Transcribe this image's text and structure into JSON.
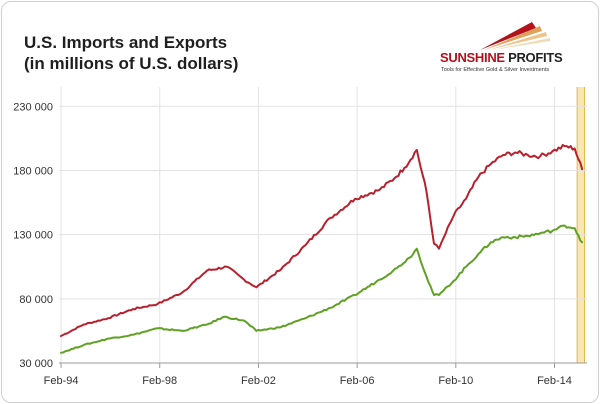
{
  "header": {
    "title_line1": "U.S. Imports and Exports",
    "title_line2": "(in millions of U.S. dollars)"
  },
  "logo": {
    "name_part1": "SUNSHINE",
    "name_part2": "PROFITS",
    "tagline": "Tools for Effective Gold & Silver Investments"
  },
  "chart_data": {
    "type": "line",
    "title": "U.S. Imports and Exports (in millions of U.S. dollars)",
    "xlabel": "",
    "ylabel": "",
    "xlim": [
      1994.0,
      2015.4
    ],
    "ylim": [
      30000,
      245000
    ],
    "y_ticks": [
      30000,
      80000,
      130000,
      180000,
      230000
    ],
    "y_tick_labels": [
      "30 000",
      "80 000",
      "130 000",
      "180 000",
      "230 000"
    ],
    "x_ticks": [
      1994.083,
      1998.083,
      2002.083,
      2006.083,
      2010.083,
      2014.083
    ],
    "x_tick_labels": [
      "Feb-94",
      "Feb-98",
      "Feb-02",
      "Feb-06",
      "Feb-10",
      "Feb-14"
    ],
    "grid": true,
    "highlight": {
      "x_range": [
        2015.0,
        2015.3
      ],
      "color": "#f8e7b4"
    },
    "series": [
      {
        "key": "imports",
        "color": "#b8202e",
        "x": [
          1994.08,
          1995.0,
          1996.0,
          1997.0,
          1998.0,
          1999.0,
          2000.0,
          2000.8,
          2001.5,
          2002.0,
          2003.0,
          2004.0,
          2005.0,
          2006.0,
          2007.0,
          2007.6,
          2008.0,
          2008.5,
          2008.9,
          2009.2,
          2009.4,
          2009.6,
          2010.0,
          2010.5,
          2011.0,
          2011.5,
          2012.0,
          2012.5,
          2013.0,
          2013.5,
          2014.0,
          2014.5,
          2014.9,
          2015.2
        ],
        "y": [
          51000,
          60000,
          65000,
          72000,
          76000,
          85000,
          102000,
          105000,
          95000,
          89000,
          103000,
          122000,
          143000,
          158000,
          165000,
          174000,
          182000,
          196000,
          163000,
          123000,
          119000,
          128000,
          145000,
          158000,
          175000,
          185000,
          192000,
          194000,
          192000,
          191000,
          195000,
          199000,
          197000,
          181000
        ]
      },
      {
        "key": "exports",
        "color": "#5fa122",
        "x": [
          1994.08,
          1995.0,
          1996.0,
          1997.0,
          1998.0,
          1999.0,
          2000.0,
          2000.7,
          2001.5,
          2002.0,
          2003.0,
          2004.0,
          2005.0,
          2006.0,
          2007.0,
          2007.7,
          2008.2,
          2008.5,
          2008.9,
          2009.2,
          2009.4,
          2010.0,
          2010.5,
          2011.0,
          2011.5,
          2012.0,
          2012.5,
          2013.0,
          2013.5,
          2014.0,
          2014.5,
          2014.9,
          2015.2
        ],
        "y": [
          38000,
          44000,
          49000,
          52000,
          57000,
          55000,
          60000,
          66000,
          63000,
          55000,
          58000,
          65000,
          73000,
          83000,
          95000,
          104000,
          112000,
          119000,
          97000,
          83000,
          83000,
          94000,
          105000,
          115000,
          124000,
          128000,
          128000,
          129000,
          131000,
          133000,
          137000,
          135000,
          124000
        ]
      }
    ]
  }
}
